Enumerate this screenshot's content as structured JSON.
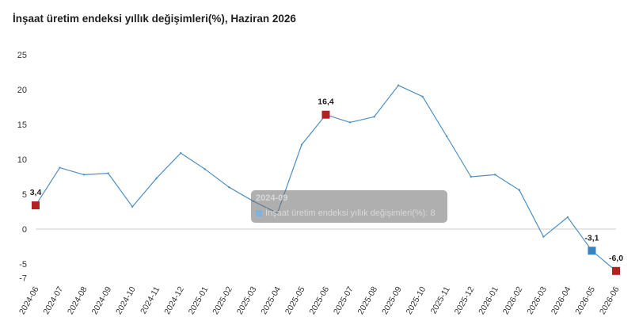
{
  "title": "İnşaat üretim endeksi yıllık değişimleri(%), Haziran 2026",
  "tooltip": {
    "category": "2024-09",
    "series_label": "İnşaat üretim endeksi yıllık değişimleri(%)",
    "value": "8"
  },
  "colors": {
    "line": "#4f8fc2",
    "marker_highlight": "#b22222",
    "marker_selected": "#3784c2",
    "grid": "#cccccc"
  },
  "chart_data": {
    "type": "line",
    "categories": [
      "2024-06",
      "2024-07",
      "2024-08",
      "2024-09",
      "2024-10",
      "2024-11",
      "2024-12",
      "2025-01",
      "2025-02",
      "2025-03",
      "2025-04",
      "2025-05",
      "2025-06",
      "2025-07",
      "2025-08",
      "2025-09",
      "2025-10",
      "2025-11",
      "2025-12",
      "2026-01",
      "2026-02",
      "2026-03",
      "2026-04",
      "2026-05",
      "2026-06"
    ],
    "series": [
      {
        "name": "İnşaat üretim endeksi yıllık değişimleri(%)",
        "values": [
          3.4,
          8.8,
          7.8,
          8.0,
          3.2,
          7.3,
          10.9,
          8.6,
          6.0,
          4.0,
          2.3,
          12.1,
          16.4,
          15.3,
          16.1,
          20.6,
          19.0,
          13.3,
          7.5,
          7.8,
          5.6,
          -1.1,
          1.7,
          -3.1,
          -6.0
        ]
      }
    ],
    "labeled_points": [
      {
        "index": 0,
        "label": "3,4",
        "marker": "highlight"
      },
      {
        "index": 12,
        "label": "16,4",
        "marker": "highlight"
      },
      {
        "index": 23,
        "label": "-3,1",
        "marker": "selected"
      },
      {
        "index": 24,
        "label": "-6,0",
        "marker": "highlight"
      }
    ],
    "y_ticks": [
      "25",
      "20",
      "15",
      "10",
      "5",
      "0",
      "-5",
      "-7"
    ],
    "y_tick_values": [
      25,
      20,
      15,
      10,
      5,
      0,
      -5,
      -7
    ],
    "ylim": [
      -7,
      25
    ],
    "xlabel": "",
    "ylabel": "",
    "grid": "zero-line only",
    "legend": "none"
  }
}
